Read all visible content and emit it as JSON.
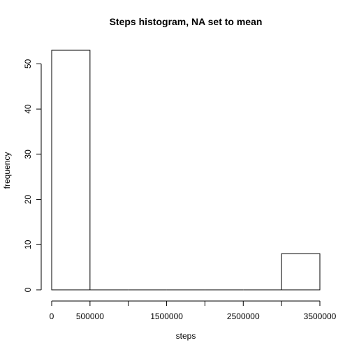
{
  "chart_data": {
    "type": "bar",
    "title": "Steps histogram, NA set to mean",
    "xlabel": "steps",
    "ylabel": "frequency",
    "bins": [
      {
        "x0": 0,
        "x1": 500000,
        "count": 53
      },
      {
        "x0": 500000,
        "x1": 1000000,
        "count": 0
      },
      {
        "x0": 1000000,
        "x1": 1500000,
        "count": 0
      },
      {
        "x0": 1500000,
        "x1": 2000000,
        "count": 0
      },
      {
        "x0": 2000000,
        "x1": 2500000,
        "count": 0
      },
      {
        "x0": 2500000,
        "x1": 3000000,
        "count": 0
      },
      {
        "x0": 3000000,
        "x1": 3500000,
        "count": 8
      }
    ],
    "xlim": [
      0,
      3500000
    ],
    "ylim": [
      0,
      53
    ],
    "x_ticks": [
      0,
      500000,
      1000000,
      1500000,
      2000000,
      2500000,
      3000000,
      3500000
    ],
    "x_tick_labels": [
      "0",
      "500000",
      "",
      "1500000",
      "",
      "2500000",
      "",
      "3500000"
    ],
    "y_ticks": [
      0,
      10,
      20,
      30,
      40,
      50
    ],
    "y_tick_labels": [
      "0",
      "10",
      "20",
      "30",
      "40",
      "50"
    ],
    "bar_fill": "#ffffff",
    "bar_stroke": "#000000",
    "grid": false
  }
}
